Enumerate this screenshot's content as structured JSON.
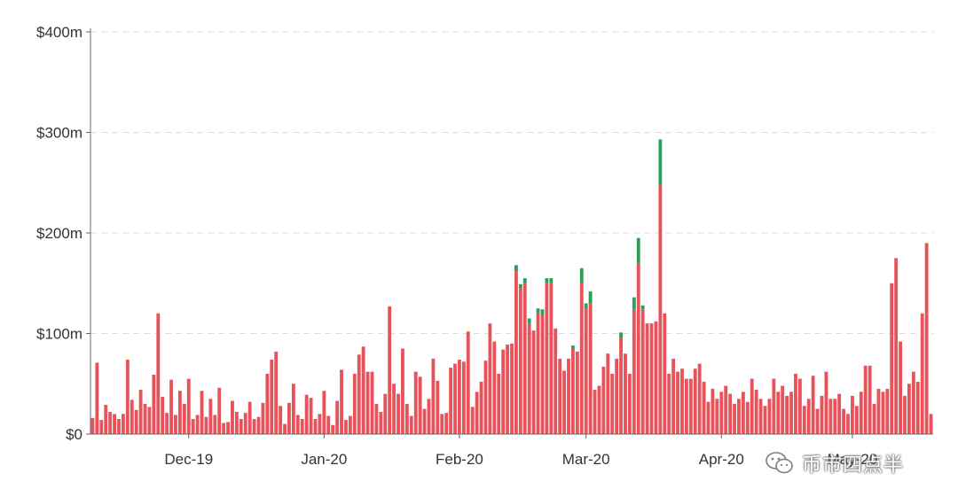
{
  "chart_data": {
    "type": "bar",
    "stacked": true,
    "title": "",
    "xlabel": "",
    "ylabel": "",
    "y_ticks": [
      "$0",
      "$100m",
      "$200m",
      "$300m",
      "$400m"
    ],
    "y_tick_values": [
      0,
      100,
      200,
      300,
      400
    ],
    "ylim": [
      0,
      400
    ],
    "x_ticks": [
      "Dec-19",
      "Jan-20",
      "Feb-20",
      "Mar-20",
      "Apr-20",
      "May-20"
    ],
    "x_tick_indices": [
      22,
      53,
      84,
      113,
      144,
      174
    ],
    "grid": true,
    "colors": {
      "main": "#e8525a",
      "secondary": "#2aa05a",
      "tertiary": "#f0c070",
      "quaternary": "#333333"
    },
    "series": [
      {
        "color": "main",
        "values": [
          16,
          71,
          14,
          29,
          22,
          20,
          15,
          20,
          74,
          34,
          24,
          44,
          30,
          27,
          59,
          120,
          37,
          21,
          54,
          19,
          43,
          30,
          55,
          15,
          19,
          43,
          17,
          35,
          19,
          46,
          11,
          12,
          33,
          22,
          15,
          21,
          32,
          15,
          17,
          31,
          60,
          74,
          82,
          28,
          10,
          31,
          50,
          19,
          15,
          39,
          36,
          15,
          20,
          43,
          18,
          9,
          33,
          64,
          14,
          18,
          60,
          79,
          87,
          62,
          62,
          30,
          22,
          40,
          127,
          50,
          40,
          85,
          30,
          18,
          62,
          57,
          25,
          35,
          75,
          53,
          20,
          21,
          66,
          70,
          74,
          72,
          102,
          27,
          42,
          52,
          73,
          110,
          92,
          60,
          84,
          89,
          90,
          162,
          145,
          150,
          110,
          103,
          120,
          118,
          150,
          150,
          105,
          75,
          63,
          75,
          85,
          82,
          150,
          125,
          130,
          44,
          48,
          67,
          80,
          60,
          75,
          96,
          80,
          60,
          124,
          170,
          124,
          110,
          110,
          112,
          248,
          120,
          60,
          75,
          62,
          65,
          55,
          55,
          65,
          70,
          52,
          32,
          45,
          35,
          42,
          48,
          40,
          30,
          35,
          42,
          32,
          55,
          44,
          35,
          28,
          35,
          55,
          42,
          48,
          38,
          42,
          60,
          55,
          28,
          35,
          58,
          25,
          38,
          62,
          35,
          35,
          40,
          25,
          20,
          38,
          28,
          42,
          68,
          68,
          30,
          45,
          42,
          45,
          150,
          175,
          92,
          38,
          50,
          62,
          52,
          120,
          190,
          20
        ]
      },
      {
        "color": "secondary",
        "values": [
          0,
          0,
          0,
          0,
          0,
          0,
          0,
          0,
          0,
          0,
          0,
          0,
          0,
          0,
          0,
          0,
          0,
          0,
          0,
          0,
          0,
          0,
          0,
          0,
          0,
          0,
          0,
          0,
          0,
          0,
          0,
          0,
          0,
          0,
          0,
          0,
          0,
          0,
          0,
          0,
          0,
          0,
          0,
          0,
          0,
          0,
          0,
          0,
          0,
          0,
          0,
          0,
          0,
          0,
          0,
          0,
          0,
          0,
          0,
          0,
          0,
          0,
          0,
          0,
          0,
          0,
          0,
          0,
          0,
          0,
          0,
          0,
          0,
          0,
          0,
          0,
          0,
          0,
          0,
          0,
          0,
          0,
          0,
          0,
          0,
          0,
          0,
          0,
          0,
          0,
          0,
          0,
          0,
          0,
          0,
          0,
          0,
          6,
          4,
          5,
          5,
          0,
          5,
          6,
          5,
          5,
          0,
          0,
          0,
          0,
          3,
          0,
          15,
          5,
          12,
          0,
          0,
          0,
          0,
          0,
          0,
          5,
          0,
          0,
          12,
          25,
          4,
          0,
          0,
          0,
          45,
          0,
          0,
          0,
          0,
          0,
          0,
          0,
          0,
          0,
          0,
          0,
          0,
          0,
          0,
          0,
          0,
          0,
          0,
          0,
          0,
          0,
          0,
          0,
          0,
          0,
          0,
          0,
          0,
          0,
          0,
          0,
          0,
          0,
          0,
          0,
          0,
          0,
          0,
          0,
          0,
          0,
          0,
          0,
          0,
          0,
          0,
          0,
          0,
          0,
          0,
          0,
          0,
          0,
          0,
          0,
          0,
          0,
          0,
          0,
          0,
          0,
          0
        ]
      },
      {
        "color": "tertiary",
        "values": [
          0,
          0,
          0,
          0,
          0,
          0,
          0,
          0,
          0,
          0,
          0,
          0,
          0,
          0,
          0,
          0,
          0,
          0,
          0,
          0,
          0,
          0,
          0,
          0,
          0,
          0,
          0,
          0,
          0,
          0,
          0,
          0,
          0,
          0,
          0,
          0,
          0,
          0,
          0,
          0,
          0,
          0,
          0,
          0,
          0,
          0,
          0,
          0,
          0,
          0,
          0,
          0,
          0,
          0,
          0,
          0,
          0,
          0,
          0,
          0,
          0,
          0,
          0,
          0,
          0,
          0,
          0,
          0,
          0,
          0,
          0,
          0,
          0,
          0,
          0,
          0,
          0,
          0,
          0,
          0,
          0,
          0,
          0,
          0,
          0,
          0,
          0,
          0,
          0,
          0,
          0,
          0,
          0,
          0,
          0,
          0,
          0,
          0,
          0,
          0,
          0,
          0,
          0,
          0,
          0,
          0,
          0,
          0,
          0,
          0,
          0,
          0,
          0,
          0,
          0,
          0,
          0,
          0,
          0,
          0,
          0,
          0,
          0,
          0,
          0,
          0,
          0,
          0,
          0,
          0,
          0,
          0,
          0,
          0,
          0,
          0,
          0,
          0,
          0,
          0,
          0,
          0,
          0,
          0,
          0,
          0,
          0,
          0,
          0,
          0,
          0,
          0,
          0,
          0,
          0,
          0,
          0,
          0,
          0,
          0,
          0,
          0,
          0,
          0,
          0,
          0,
          0,
          0,
          0,
          0,
          0,
          0,
          0,
          0,
          0,
          0,
          0,
          0,
          0,
          0,
          0,
          0,
          0,
          0,
          0,
          0,
          0,
          0,
          0,
          0,
          0,
          0,
          0,
          0,
          0,
          0
        ]
      },
      {
        "color": "quaternary",
        "values": [
          0,
          0,
          0,
          0,
          0,
          0,
          0,
          0,
          0,
          0,
          0,
          0,
          0,
          0,
          0,
          0,
          0,
          0,
          0,
          0,
          0,
          0,
          0,
          0,
          0,
          0,
          0,
          0,
          0,
          0,
          0,
          0,
          0,
          0,
          0,
          0,
          0,
          0,
          0,
          0,
          0,
          0,
          0,
          0,
          0,
          0,
          0,
          0,
          0,
          0,
          0,
          0,
          0,
          0,
          0,
          0,
          0,
          0,
          0,
          0,
          0,
          0,
          0,
          0,
          0,
          0,
          0,
          0,
          0,
          0,
          0,
          0,
          0,
          0,
          0,
          0,
          0,
          0,
          0,
          0,
          0,
          0,
          0,
          0,
          0,
          0,
          0,
          0,
          0,
          0,
          0,
          0,
          0,
          0,
          0,
          0,
          0,
          0,
          0,
          0,
          0,
          0,
          0,
          0,
          0,
          0,
          0,
          0,
          0,
          0,
          0,
          0,
          0,
          0,
          0,
          0,
          0,
          0,
          0,
          0,
          0,
          0,
          0,
          0,
          0,
          0,
          0,
          0,
          0,
          0,
          0,
          0,
          0,
          0,
          0,
          0,
          0,
          0,
          0,
          0,
          0,
          0,
          0,
          0,
          0,
          0,
          0,
          0,
          0,
          0,
          0,
          0,
          0,
          0,
          0,
          0,
          0,
          0,
          0,
          0,
          0,
          0,
          0,
          0,
          0,
          0,
          0,
          0,
          0,
          0,
          0,
          0,
          0,
          0,
          0,
          0,
          0,
          0,
          0,
          0,
          0,
          0,
          0,
          0,
          0,
          0,
          0,
          0,
          0,
          0,
          0,
          0,
          0,
          0,
          0,
          0
        ]
      }
    ]
  },
  "watermark": {
    "text": "币市四点半",
    "icon": "wechat-icon"
  }
}
